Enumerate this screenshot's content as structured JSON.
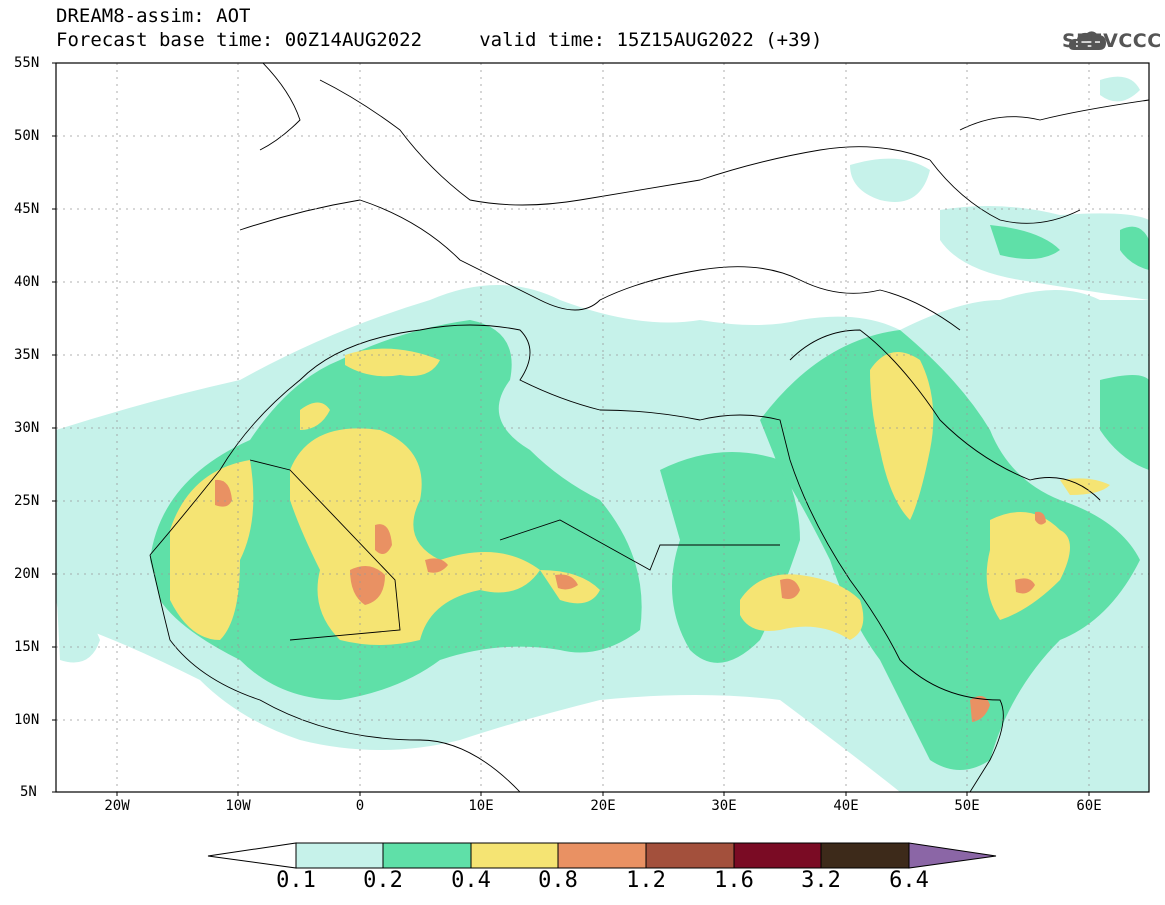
{
  "header": {
    "title_line1": "DREAM8-assim: AOT",
    "title_line2": "Forecast base time: 00Z14AUG2022     valid time: 15Z15AUG2022 (+39)",
    "logo_text": "SEEVCCC",
    "logo_icon": "cloud-icon"
  },
  "map": {
    "lat_range": [
      5,
      55
    ],
    "lon_range": [
      -25,
      65
    ],
    "lat_labels": [
      "55N",
      "50N",
      "45N",
      "40N",
      "35N",
      "30N",
      "25N",
      "20N",
      "15N",
      "10N",
      "5N"
    ],
    "lon_labels": [
      "20W",
      "10W",
      "0",
      "10E",
      "20E",
      "30E",
      "40E",
      "50E",
      "60E"
    ],
    "grid": "dotted"
  },
  "legend": {
    "levels": [
      "0.1",
      "0.2",
      "0.4",
      "0.8",
      "1.2",
      "1.6",
      "3.2",
      "6.4"
    ],
    "colors": [
      "#ffffff",
      "#c6f2ea",
      "#5fe0a8",
      "#f5e473",
      "#e99163",
      "#a3503c",
      "#7a0b24",
      "#3d2a1a",
      "#8b66a6"
    ]
  }
}
